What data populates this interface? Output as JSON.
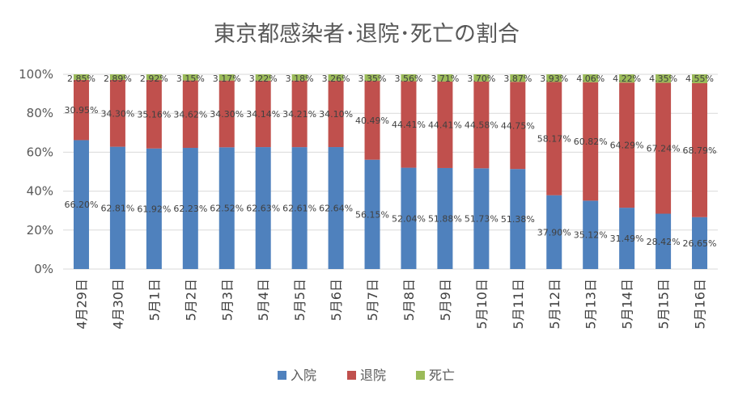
{
  "chart_data": {
    "type": "bar",
    "stacked": true,
    "percent": true,
    "title": "東京都感染者･退院･死亡の割合",
    "xlabel": "",
    "ylabel": "",
    "ylim": [
      0,
      100
    ],
    "yticks": [
      "0%",
      "20%",
      "40%",
      "60%",
      "80%",
      "100%"
    ],
    "grid": true,
    "legend": "bottom",
    "categories": [
      "4月29日",
      "4月30日",
      "5月1日",
      "5月2日",
      "5月3日",
      "5月4日",
      "5月5日",
      "5月6日",
      "5月7日",
      "5月8日",
      "5月9日",
      "5月10日",
      "5月11日",
      "5月12日",
      "5月13日",
      "5月14日",
      "5月15日",
      "5月16日"
    ],
    "series": [
      {
        "name": "入院",
        "color": "#4f81bd",
        "values": [
          66.2,
          62.81,
          61.92,
          62.23,
          62.52,
          62.63,
          62.61,
          62.64,
          56.15,
          52.04,
          51.88,
          51.73,
          51.38,
          37.9,
          35.12,
          31.49,
          28.42,
          26.65
        ],
        "labels": [
          "66.20%",
          "62.81%",
          "61.92%",
          "62.23%",
          "62.52%",
          "62.63%",
          "62.61%",
          "62.64%",
          "56.15%",
          "52.04%",
          "51.88%",
          "51.73%",
          "51.38%",
          "37.90%",
          "35.12%",
          "31.49%",
          "28.42%",
          "26.65%"
        ]
      },
      {
        "name": "退院",
        "color": "#c0504d",
        "values": [
          30.95,
          34.3,
          35.16,
          34.62,
          34.3,
          34.14,
          34.21,
          34.1,
          40.49,
          44.41,
          44.41,
          44.58,
          44.75,
          58.17,
          60.82,
          64.29,
          67.24,
          68.79
        ],
        "labels": [
          "30.95%",
          "34.30%",
          "35.16%",
          "34.62%",
          "34.30%",
          "34.14%",
          "34.21%",
          "34.10%",
          "40.49%",
          "44.41%",
          "44.41%",
          "44.58%",
          "44.75%",
          "58.17%",
          "60.82%",
          "64.29%",
          "67.24%",
          "68.79%"
        ]
      },
      {
        "name": "死亡",
        "color": "#9bbb59",
        "values": [
          2.85,
          2.89,
          2.92,
          3.15,
          3.17,
          3.22,
          3.18,
          3.26,
          3.35,
          3.56,
          3.71,
          3.7,
          3.87,
          3.93,
          4.06,
          4.22,
          4.35,
          4.55
        ],
        "labels": [
          "2.85%",
          "2.89%",
          "2.92%",
          "3.15%",
          "3.17%",
          "3.22%",
          "3.18%",
          "3.26%",
          "3.35%",
          "3.56%",
          "3.71%",
          "3.70%",
          "3.87%",
          "3.93%",
          "4.06%",
          "4.22%",
          "4.35%",
          "4.55%"
        ]
      }
    ]
  }
}
